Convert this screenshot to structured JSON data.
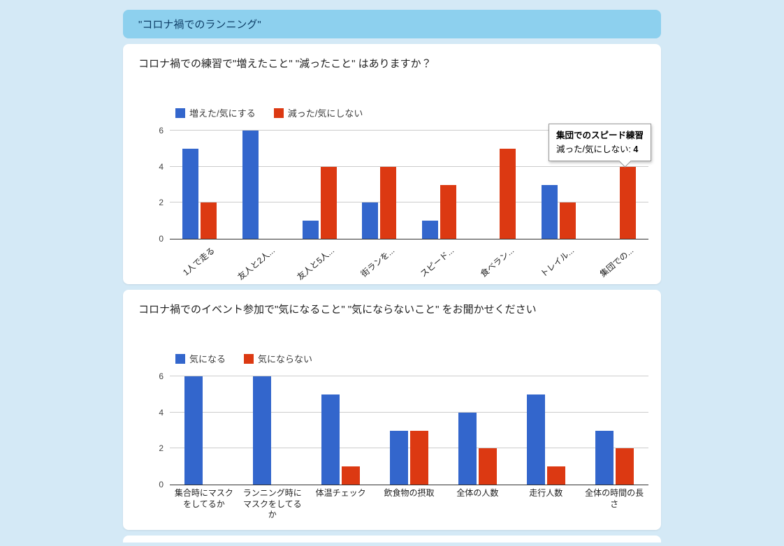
{
  "page": {
    "header_title": "\"コロナ禍でのランニング\""
  },
  "colors": {
    "page_bg": "#d4e9f6",
    "header_bg": "#8dd0ee",
    "header_text": "#0d3d66",
    "bar_blue": "#3366cc",
    "bar_red": "#dc3912"
  },
  "chart_data": [
    {
      "type": "bar",
      "title": "コロナ禍での練習で\"増えたこと\" \"減ったこと\" はありますか？",
      "categories": [
        "1人で走る",
        "友人と2人...",
        "友人と5人...",
        "街ランを...",
        "スピード...",
        "食べラン...",
        "トレイル...",
        "集団での..."
      ],
      "series": [
        {
          "name": "増えた/気にする",
          "color": "#3366cc",
          "values": [
            5,
            6,
            1,
            2,
            1,
            0,
            3,
            0
          ]
        },
        {
          "name": "減った/気にしない",
          "color": "#dc3912",
          "values": [
            2,
            0,
            4,
            4,
            3,
            5,
            2,
            4
          ]
        }
      ],
      "ylim": [
        0,
        6
      ],
      "yticks": [
        0,
        2,
        4,
        6
      ],
      "legend_position": "top-left",
      "grid": true,
      "rotated_labels": true,
      "tooltip": {
        "title": "集団でのスピード練習",
        "label": "減った/気にしない: ",
        "value": "4"
      }
    },
    {
      "type": "bar",
      "title": "コロナ禍でのイベント参加で\"気になること\" \"気にならないこと\" をお聞かせください",
      "categories": [
        "集合時にマスクをしてるか",
        "ランニング時にマスクをしてるか",
        "体温チェック",
        "飲食物の摂取",
        "全体の人数",
        "走行人数",
        "全体の時間の長さ"
      ],
      "series": [
        {
          "name": "気になる",
          "color": "#3366cc",
          "values": [
            6,
            6,
            5,
            3,
            4,
            5,
            3
          ]
        },
        {
          "name": "気にならない",
          "color": "#dc3912",
          "values": [
            0,
            0,
            1,
            3,
            2,
            1,
            2
          ]
        }
      ],
      "ylim": [
        0,
        6
      ],
      "yticks": [
        0,
        2,
        4,
        6
      ],
      "legend_position": "top-left",
      "grid": true,
      "rotated_labels": false
    }
  ]
}
